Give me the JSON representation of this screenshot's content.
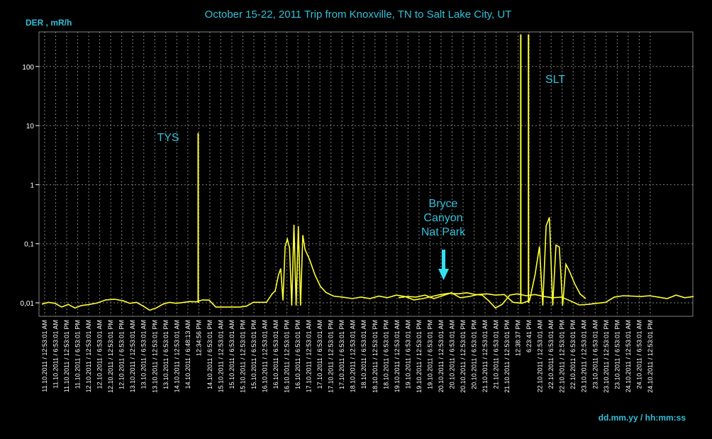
{
  "chart_data": {
    "type": "line",
    "title": "October 15-22, 2011 Trip from Knoxville, TN to Salt Lake City, UT",
    "ylabel": "DER , mR/h",
    "xlabel": "dd.mm.yy / hh:mm:ss",
    "yscale": "log",
    "ylim": [
      0.006,
      400
    ],
    "y_ticks": [
      {
        "value": 0.01,
        "label": "0,01"
      },
      {
        "value": 0.1,
        "label": "0,1"
      },
      {
        "value": 1,
        "label": "1"
      },
      {
        "value": 10,
        "label": "10"
      },
      {
        "value": 100,
        "label": "100"
      }
    ],
    "grid": true,
    "line_color": "#ffff33",
    "x_tick_labels": [
      "11.10.2011 / 12:53:01 AM",
      "11.10.2011 / 6:53:01 AM",
      "11.10.2011 / 12:53:01 PM",
      "11.10.2011 / 6:53:01 PM",
      "12.10.2011 / 12:53:01 AM",
      "12.10.2011 / 6:53:01 AM",
      "12.10.2011 / 12:53:01 PM",
      "12.10.2011 / 6:53:01 PM",
      "13.10.2011 / 12:53:01 AM",
      "13.10.2011 / 6:53:01 AM",
      "13.10.2011 / 12:53:01 PM",
      "13.10.2011 / 6:53:01 PM",
      "14.10.2011 / 12:53:01 AM",
      "14.10.2011 / 6:48:13 AM",
      "12:34:56 PM",
      "14.10.2011 / 6:53:01 PM",
      "15.10.2011 / 12:53:01 AM",
      "15.10.2011 / 6:53:01 AM",
      "15.10.2011 / 12:53:01 PM",
      "15.10.2011 / 6:53:01 PM",
      "16.10.2011 / 12:53:01 AM",
      "16.10.2011 / 6:53:01 AM",
      "16.10.2011 / 12:53:01 PM",
      "16.10.2011 / 6:53:01 PM",
      "17.10.2011 / 12:53:01 AM",
      "17.10.2011 / 6:53:01 AM",
      "17.10.2011 / 12:53:01 PM",
      "17.10.2011 / 6:53:01 PM",
      "18.10.2011 / 12:53:01 AM",
      "18.10.2011 / 6:53:01 AM",
      "18.10.2011 / 12:53:01 PM",
      "18.10.2011 / 6:53:01 PM",
      "19.10.2011 / 12:53:01 AM",
      "19.10.2011 / 6:53:01 AM",
      "19.10.2011 / 12:53:01 PM",
      "19.10.2011 / 6:53:01 PM",
      "20.10.2011 / 12:53:01 AM",
      "20.10.2011 / 6:53:01 AM",
      "20.10.2011 / 12:53:01 PM",
      "20.10.2011 / 6:53:01 PM",
      "21.10.2011 / 12:53:01 AM",
      "21.10.2011 / 6:53:01 AM",
      "21.10.2011 / 12:53:01 PM",
      "12:38:37 PM",
      "6:23:41 PM",
      "22.10.2011 / 12:53:01 AM",
      "22.10.2011 / 6:53:01 AM",
      "22.10.2011 / 12:53:01 PM",
      "22.10.2011 / 6:53:01 PM",
      "23.10.2011 / 12:53:01 AM",
      "23.10.2011 / 6:53:01 AM",
      "23.10.2011 / 12:53:01 PM",
      "23.10.2011 / 6:53:01 PM",
      "24.10.2011 / 12:53:01 AM",
      "24.10.2011 / 6:53:01 AM",
      "24.10.2011 / 12:53:01 PM"
    ],
    "x_range_index": [
      0,
      59
    ],
    "series": [
      {
        "values": [
          [
            0,
            0.0095
          ],
          [
            0.6,
            0.0102
          ],
          [
            1.2,
            0.0098
          ],
          [
            1.8,
            0.0085
          ],
          [
            2.4,
            0.0094
          ],
          [
            3.0,
            0.0082
          ],
          [
            3.6,
            0.009
          ],
          [
            4.2,
            0.0093
          ],
          [
            5.0,
            0.0099
          ],
          [
            5.8,
            0.0112
          ],
          [
            6.6,
            0.0115
          ],
          [
            7.4,
            0.0108
          ],
          [
            8.0,
            0.0098
          ],
          [
            8.6,
            0.0102
          ],
          [
            9.2,
            0.0088
          ],
          [
            9.8,
            0.0075
          ],
          [
            10.4,
            0.0082
          ],
          [
            11.0,
            0.0095
          ],
          [
            11.6,
            0.0102
          ],
          [
            12.2,
            0.0098
          ],
          [
            12.8,
            0.0101
          ],
          [
            13.4,
            0.0105
          ],
          [
            14.0,
            0.0104
          ],
          [
            14.6,
            0.0112
          ],
          [
            15.2,
            0.0111
          ],
          [
            15.8,
            0.0085
          ],
          [
            16.6,
            0.0085
          ],
          [
            17.4,
            0.0085
          ],
          [
            18.0,
            0.0085
          ],
          [
            18.6,
            0.0088
          ],
          [
            19.2,
            0.0102
          ],
          [
            19.8,
            0.0102
          ],
          [
            20.4,
            0.0102
          ],
          [
            20.9,
            0.014
          ],
          [
            21.2,
            0.016
          ],
          [
            21.5,
            0.03
          ],
          [
            21.7,
            0.038
          ],
          [
            21.9,
            0.011
          ],
          [
            22.1,
            0.09
          ],
          [
            22.3,
            0.12
          ],
          [
            22.5,
            0.085
          ],
          [
            22.7,
            0.009
          ],
          [
            22.9,
            0.21
          ],
          [
            23.1,
            0.009
          ],
          [
            23.3,
            0.2
          ],
          [
            23.5,
            0.009
          ],
          [
            23.7,
            0.14
          ],
          [
            23.9,
            0.08
          ],
          [
            24.3,
            0.055
          ],
          [
            24.8,
            0.03
          ],
          [
            25.3,
            0.019
          ],
          [
            25.8,
            0.015
          ],
          [
            26.5,
            0.013
          ],
          [
            27.3,
            0.0125
          ],
          [
            28.2,
            0.0118
          ],
          [
            29.0,
            0.0125
          ],
          [
            29.8,
            0.0118
          ],
          [
            30.6,
            0.013
          ],
          [
            31.4,
            0.0122
          ],
          [
            32.2,
            0.0135
          ],
          [
            33.0,
            0.0128
          ],
          [
            33.8,
            0.0112
          ],
          [
            34.6,
            0.0118
          ],
          [
            35.4,
            0.0128
          ],
          [
            36.2,
            0.0138
          ],
          [
            37.0,
            0.0145
          ],
          [
            37.8,
            0.0142
          ],
          [
            38.6,
            0.0148
          ],
          [
            39.4,
            0.0138
          ],
          [
            40.0,
            0.0135
          ],
          [
            40.6,
            0.0108
          ],
          [
            41.2,
            0.0082
          ],
          [
            41.8,
            0.0094
          ],
          [
            42.5,
            0.0135
          ],
          [
            43.2,
            0.0142
          ],
          [
            44.0,
            0.0132
          ],
          [
            44.8,
            0.0138
          ],
          [
            45.6,
            0.0128
          ],
          [
            46.4,
            0.0122
          ],
          [
            47.2,
            0.0125
          ],
          [
            48.0,
            0.0108
          ],
          [
            48.8,
            0.0092
          ],
          [
            49.6,
            0.0094
          ],
          [
            50.4,
            0.0098
          ],
          [
            51.2,
            0.0102
          ],
          [
            52.0,
            0.0125
          ],
          [
            52.8,
            0.0132
          ],
          [
            53.6,
            0.013
          ],
          [
            54.4,
            0.0128
          ],
          [
            55.2,
            0.0132
          ],
          [
            56.0,
            0.0125
          ],
          [
            56.8,
            0.0118
          ],
          [
            57.6,
            0.0135
          ],
          [
            58.4,
            0.0122
          ],
          [
            59.2,
            0.0128
          ]
        ]
      },
      {
        "values": [
          [
            32.4,
            0.0122
          ],
          [
            33.2,
            0.0128
          ],
          [
            34.0,
            0.0125
          ],
          [
            34.8,
            0.0135
          ],
          [
            35.6,
            0.0118
          ],
          [
            36.4,
            0.0132
          ],
          [
            37.2,
            0.0148
          ],
          [
            38.0,
            0.0122
          ],
          [
            38.8,
            0.0128
          ],
          [
            39.6,
            0.0138
          ],
          [
            40.4,
            0.0142
          ],
          [
            41.2,
            0.0135
          ],
          [
            42.0,
            0.0138
          ],
          [
            42.8,
            0.0102
          ],
          [
            43.6,
            0.0098
          ],
          [
            44.3,
            0.011
          ],
          [
            44.8,
            0.03
          ],
          [
            45.2,
            0.09
          ],
          [
            45.5,
            0.009
          ],
          [
            45.8,
            0.2
          ],
          [
            46.1,
            0.28
          ],
          [
            46.4,
            0.009
          ],
          [
            46.7,
            0.095
          ],
          [
            47.0,
            0.088
          ],
          [
            47.3,
            0.009
          ],
          [
            47.6,
            0.045
          ],
          [
            47.9,
            0.035
          ],
          [
            48.4,
            0.021
          ],
          [
            48.9,
            0.014
          ],
          [
            49.4,
            0.0118
          ]
        ]
      }
    ],
    "spikes": [
      {
        "x": 14.2,
        "y": 7.5
      },
      {
        "x": 43.5,
        "y": 350
      },
      {
        "x": 44.2,
        "y": 350
      }
    ],
    "annotations": [
      {
        "text": "TYS"
      },
      {
        "text": "SLT"
      },
      {
        "lines": [
          "Bryce",
          "Canyon",
          "Nat Park"
        ]
      }
    ],
    "arrow_color": "#33e0f0"
  }
}
